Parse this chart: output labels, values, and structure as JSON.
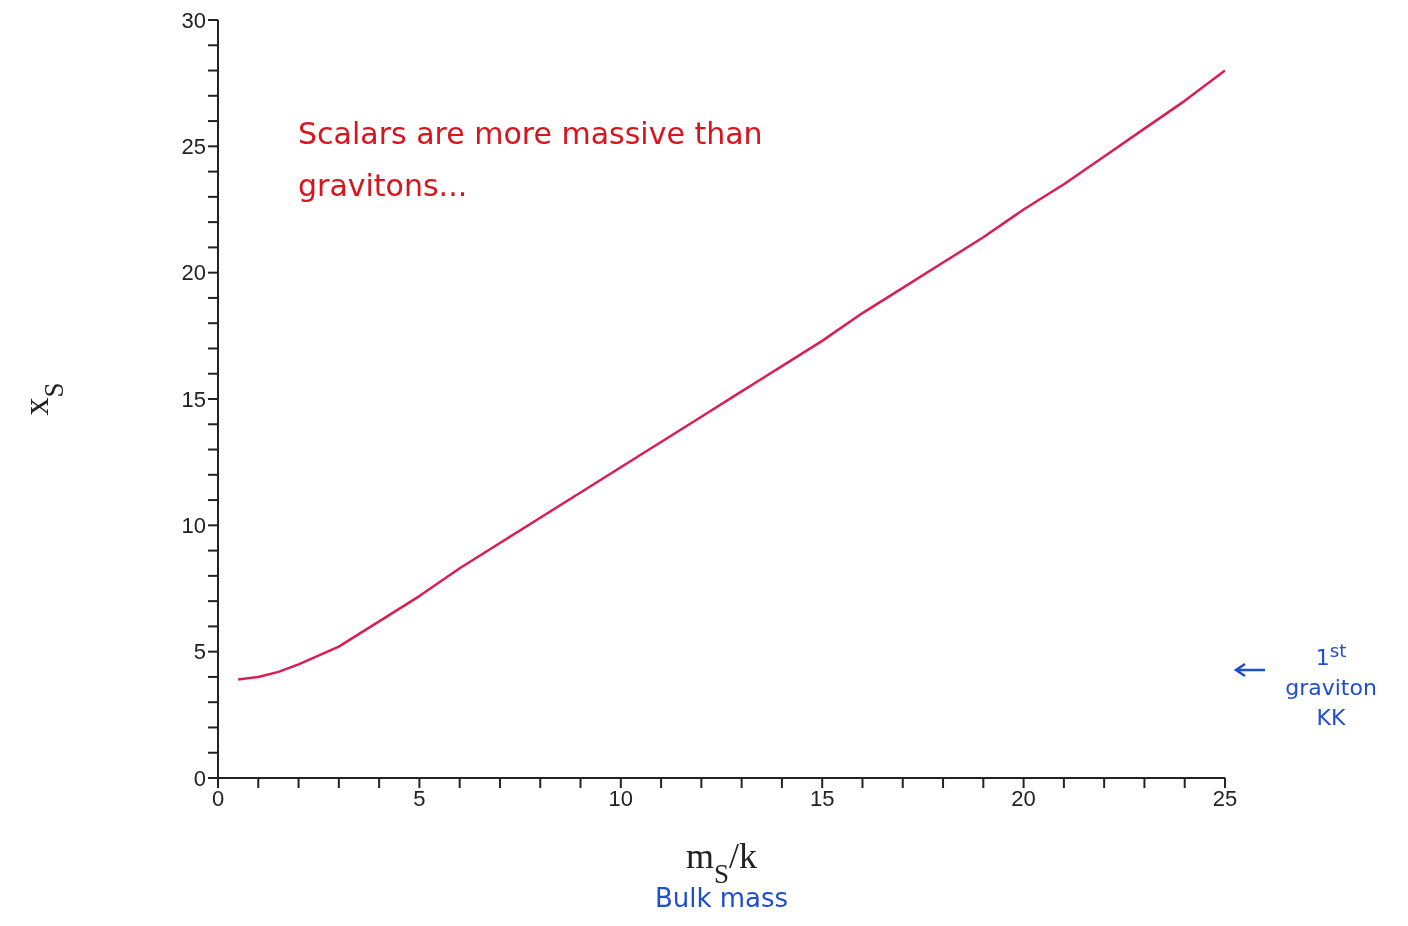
{
  "chart_data": {
    "type": "line",
    "xlabel": "m$_{S}$/k",
    "ylabel": "x$_{S}$",
    "x": [
      0.5,
      1,
      1.5,
      2,
      3,
      4,
      5,
      6,
      7,
      8,
      9,
      10,
      11,
      12,
      13,
      14,
      15,
      16,
      17,
      18,
      19,
      20,
      21,
      22,
      23,
      24,
      25
    ],
    "series": [
      {
        "color": "#d81e55",
        "values": [
          3.9,
          4.0,
          4.2,
          4.5,
          5.2,
          6.2,
          7.2,
          8.3,
          9.3,
          10.3,
          11.3,
          12.3,
          13.3,
          14.3,
          15.3,
          16.3,
          17.3,
          18.4,
          19.4,
          20.4,
          21.4,
          22.5,
          23.5,
          24.6,
          25.7,
          26.8,
          28.0
        ]
      }
    ],
    "xlim": [
      0,
      25
    ],
    "ylim": [
      0,
      30
    ],
    "xticks": [
      0,
      {
        "value": 1,
        "label": null
      },
      {
        "value": 2,
        "label": null
      },
      {
        "value": 3,
        "label": null
      },
      {
        "value": 4,
        "label": null
      },
      5,
      {
        "value": 6,
        "label": null
      },
      {
        "value": 7,
        "label": null
      },
      {
        "value": 8,
        "label": null
      },
      {
        "value": 9,
        "label": null
      },
      10,
      {
        "value": 11,
        "label": null
      },
      {
        "value": 12,
        "label": null
      },
      {
        "value": 13,
        "label": null
      },
      {
        "value": 14,
        "label": null
      },
      15,
      {
        "value": 16,
        "label": null
      },
      {
        "value": 17,
        "label": null
      },
      {
        "value": 18,
        "label": null
      },
      {
        "value": 19,
        "label": null
      },
      20,
      {
        "value": 21,
        "label": null
      },
      {
        "value": 22,
        "label": null
      },
      {
        "value": 23,
        "label": null
      },
      {
        "value": 24,
        "label": null
      },
      25
    ],
    "yticks": [
      0,
      {
        "value": 1,
        "label": null
      },
      {
        "value": 2,
        "label": null
      },
      {
        "value": 3,
        "label": null
      },
      {
        "value": 4,
        "label": null
      },
      5,
      {
        "value": 6,
        "label": null
      },
      {
        "value": 7,
        "label": null
      },
      {
        "value": 8,
        "label": null
      },
      {
        "value": 9,
        "label": null
      },
      10,
      {
        "value": 11,
        "label": null
      },
      {
        "value": 12,
        "label": null
      },
      {
        "value": 13,
        "label": null
      },
      {
        "value": 14,
        "label": null
      },
      15,
      {
        "value": 16,
        "label": null
      },
      {
        "value": 17,
        "label": null
      },
      {
        "value": 18,
        "label": null
      },
      {
        "value": 19,
        "label": null
      },
      20,
      {
        "value": 21,
        "label": null
      },
      {
        "value": 22,
        "label": null
      },
      {
        "value": 23,
        "label": null
      },
      {
        "value": 24,
        "label": null
      },
      25,
      {
        "value": 26,
        "label": null
      },
      {
        "value": 27,
        "label": null
      },
      {
        "value": 28,
        "label": null
      },
      {
        "value": 29,
        "label": null
      },
      30
    ],
    "grid": false,
    "legend": false,
    "marker": "none",
    "line_style": "solid",
    "annotations": [
      "Scalars are more massive than gravitons...",
      "1$^{st}$ graviton KK",
      "Bulk mass"
    ]
  }
}
